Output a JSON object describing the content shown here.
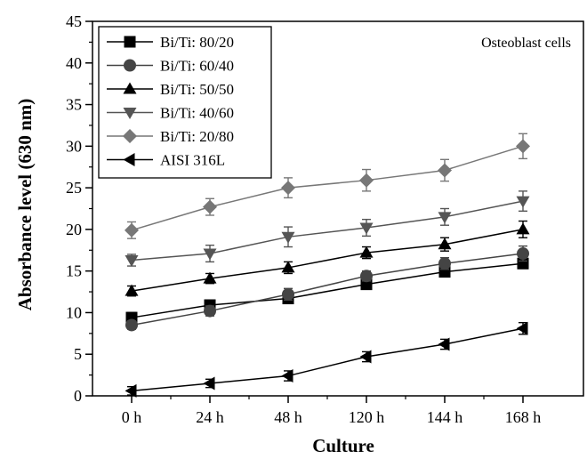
{
  "chart_data": {
    "type": "line",
    "annotation": "Osteoblast cells",
    "xlabel": "Culture",
    "ylabel": "Absorbance level (630 nm)",
    "categories": [
      "0 h",
      "24 h",
      "48 h",
      "120 h",
      "144 h",
      "168 h"
    ],
    "ylim": [
      0,
      45
    ],
    "yticks": [
      0,
      5,
      10,
      15,
      20,
      25,
      30,
      35,
      40,
      45
    ],
    "legend_position": "top-left",
    "series": [
      {
        "name": "Bi/Ti: 80/20",
        "marker": "square",
        "color": "#000000",
        "values": [
          9.4,
          10.9,
          11.7,
          13.4,
          14.9,
          15.9
        ],
        "errors": [
          0.6,
          0.6,
          0.6,
          0.6,
          0.6,
          0.6
        ]
      },
      {
        "name": "Bi/Ti: 60/40",
        "marker": "circle",
        "color": "#444444",
        "values": [
          8.5,
          10.2,
          12.2,
          14.4,
          15.9,
          17.1
        ],
        "errors": [
          0.5,
          0.6,
          0.7,
          0.6,
          0.7,
          0.9
        ]
      },
      {
        "name": "Bi/Ti: 50/50",
        "marker": "triangle-up",
        "color": "#000000",
        "values": [
          12.6,
          14.1,
          15.4,
          17.2,
          18.2,
          20.0
        ],
        "errors": [
          0.6,
          0.6,
          0.7,
          0.7,
          0.8,
          1.0
        ]
      },
      {
        "name": "Bi/Ti: 40/60",
        "marker": "triangle-down",
        "color": "#555555",
        "values": [
          16.3,
          17.1,
          19.1,
          20.2,
          21.5,
          23.4
        ],
        "errors": [
          0.7,
          1.0,
          1.2,
          1.0,
          1.0,
          1.2
        ]
      },
      {
        "name": "Bi/Ti: 20/80",
        "marker": "diamond",
        "color": "#777777",
        "values": [
          19.9,
          22.7,
          25.0,
          25.9,
          27.1,
          30.0
        ],
        "errors": [
          1.0,
          1.0,
          1.2,
          1.3,
          1.3,
          1.5
        ]
      },
      {
        "name": "AISI 316L",
        "marker": "triangle-left",
        "color": "#000000",
        "values": [
          0.6,
          1.5,
          2.4,
          4.7,
          6.2,
          8.1
        ],
        "errors": [
          0.5,
          0.5,
          0.6,
          0.6,
          0.6,
          0.7
        ]
      }
    ]
  }
}
